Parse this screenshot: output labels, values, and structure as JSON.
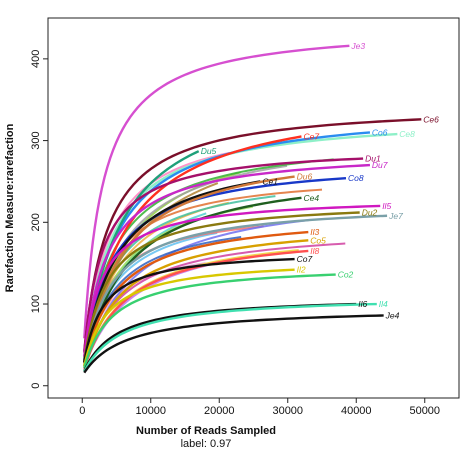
{
  "chart_data": {
    "type": "line",
    "title": "",
    "xlabel": "Number of Reads Sampled",
    "ylabel": "Rarefaction Measure:rarefaction",
    "sublabel": "label: 0.97",
    "xlim": [
      -5000,
      55000
    ],
    "ylim": [
      -15,
      450
    ],
    "x_ticks": [
      0,
      10000,
      20000,
      30000,
      40000,
      50000
    ],
    "y_ticks": [
      0,
      100,
      200,
      300,
      400
    ],
    "grid": false,
    "legend": "none (series labelled at curve ends)",
    "series": [
      {
        "name": "Je3",
        "color": "#d64fd0",
        "x_end": 39000,
        "y_end": 416
      },
      {
        "name": "Ce6",
        "color": "#7a0f2a",
        "x_end": 49500,
        "y_end": 326
      },
      {
        "name": "Ce8",
        "color": "#8ef0c8",
        "x_end": 46000,
        "y_end": 308
      },
      {
        "name": "Co6",
        "color": "#2a8cf0",
        "x_end": 42000,
        "y_end": 310
      },
      {
        "name": "Du5",
        "color": "#1fa07a",
        "x_end": 17000,
        "y_end": 287
      },
      {
        "name": "Ce7",
        "color": "#ff3020",
        "x_end": 32000,
        "y_end": 305
      },
      {
        "name": "Du1",
        "color": "#a5106a",
        "x_end": 41000,
        "y_end": 278
      },
      {
        "name": "Du7",
        "color": "#c828c8",
        "x_end": 42000,
        "y_end": 270
      },
      {
        "name": "Co8",
        "color": "#1838c8",
        "x_end": 38500,
        "y_end": 254
      },
      {
        "name": "Ce1",
        "color": "#111111",
        "x_end": 26000,
        "y_end": 250
      },
      {
        "name": "Du6",
        "color": "#d07838",
        "x_end": 31000,
        "y_end": 256
      },
      {
        "name": "Ce4",
        "color": "#1f5f1f",
        "x_end": 32000,
        "y_end": 230
      },
      {
        "name": "Il5",
        "color": "#d018c0",
        "x_end": 43500,
        "y_end": 220
      },
      {
        "name": "Du2",
        "color": "#8a7a10",
        "x_end": 40500,
        "y_end": 212
      },
      {
        "name": "Je7",
        "color": "#7aa0a8",
        "x_end": 44500,
        "y_end": 208
      },
      {
        "name": "Il3",
        "color": "#e05a10",
        "x_end": 33000,
        "y_end": 188
      },
      {
        "name": "Co5",
        "color": "#d8a000",
        "x_end": 33000,
        "y_end": 178
      },
      {
        "name": "Il8",
        "color": "#ff5050",
        "x_end": 33000,
        "y_end": 165
      },
      {
        "name": "Co7",
        "color": "#111111",
        "x_end": 31000,
        "y_end": 155
      },
      {
        "name": "Il2",
        "color": "#d8c800",
        "x_end": 31000,
        "y_end": 142
      },
      {
        "name": "Co2",
        "color": "#38d070",
        "x_end": 37000,
        "y_end": 136
      },
      {
        "name": "Il6",
        "color": "#111111",
        "x_end": 40000,
        "y_end": 100
      },
      {
        "name": "Il4",
        "color": "#40e0b0",
        "x_end": 43000,
        "y_end": 100
      },
      {
        "name": "Je4",
        "color": "#111111",
        "x_end": 44000,
        "y_end": 86
      }
    ]
  }
}
